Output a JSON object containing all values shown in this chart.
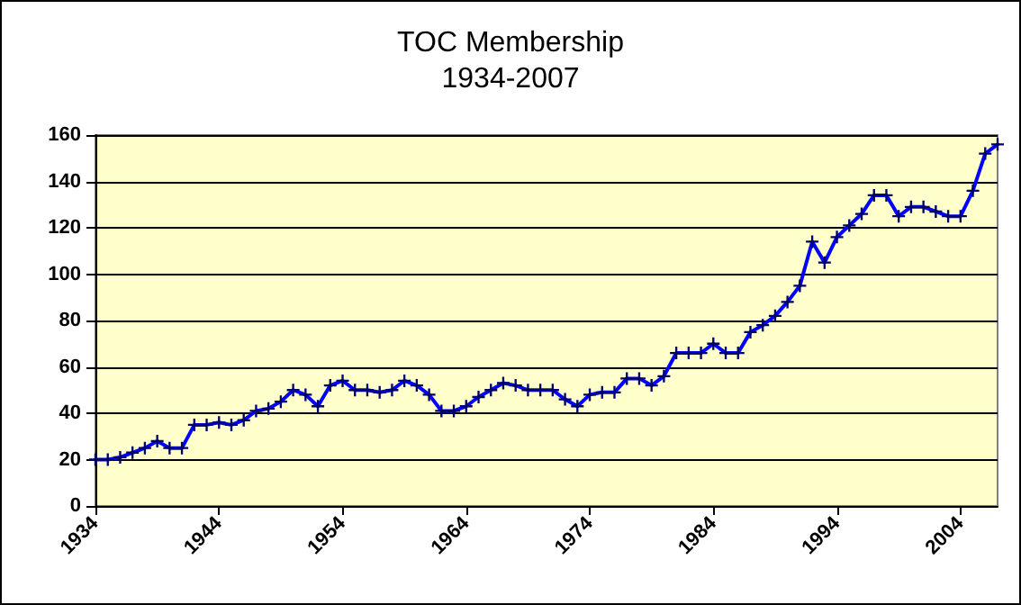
{
  "chart_data": {
    "type": "line",
    "title": "TOC Membership",
    "subtitle": "1934-2007",
    "x": [
      1934,
      1935,
      1936,
      1937,
      1938,
      1939,
      1940,
      1941,
      1942,
      1943,
      1944,
      1945,
      1946,
      1947,
      1948,
      1949,
      1950,
      1951,
      1952,
      1953,
      1954,
      1955,
      1956,
      1957,
      1958,
      1959,
      1960,
      1961,
      1962,
      1963,
      1964,
      1965,
      1966,
      1967,
      1968,
      1969,
      1970,
      1971,
      1972,
      1973,
      1974,
      1975,
      1976,
      1977,
      1978,
      1979,
      1980,
      1981,
      1982,
      1983,
      1984,
      1985,
      1986,
      1987,
      1988,
      1989,
      1990,
      1991,
      1992,
      1993,
      1994,
      1995,
      1996,
      1997,
      1998,
      1999,
      2000,
      2001,
      2002,
      2003,
      2004,
      2005,
      2006,
      2007
    ],
    "series": [
      {
        "color": "#0000ff",
        "values": [
          20,
          20,
          21,
          23,
          25,
          28,
          25,
          25,
          35,
          35,
          36,
          35,
          37,
          41,
          42,
          45,
          50,
          48,
          43,
          52,
          54,
          50,
          50,
          49,
          50,
          54,
          52,
          48,
          41,
          41,
          43,
          47,
          50,
          53,
          52,
          50,
          50,
          50,
          46,
          43,
          48,
          49,
          49,
          55,
          55,
          52,
          56,
          66,
          66,
          66,
          70,
          66,
          66,
          75,
          78,
          82,
          88,
          95,
          114,
          105,
          116,
          121,
          126,
          134,
          134,
          125,
          129,
          129,
          127,
          125,
          125,
          136,
          152,
          156
        ]
      }
    ],
    "xlim": [
      1934,
      2007
    ],
    "xticks": [
      1934,
      1944,
      1954,
      1964,
      1974,
      1984,
      1994,
      2004
    ],
    "ylim": [
      0,
      160
    ],
    "yticks": [
      0,
      20,
      40,
      60,
      80,
      100,
      120,
      140,
      160
    ],
    "grid": "y",
    "marker": "cross",
    "line_style": "solid"
  }
}
